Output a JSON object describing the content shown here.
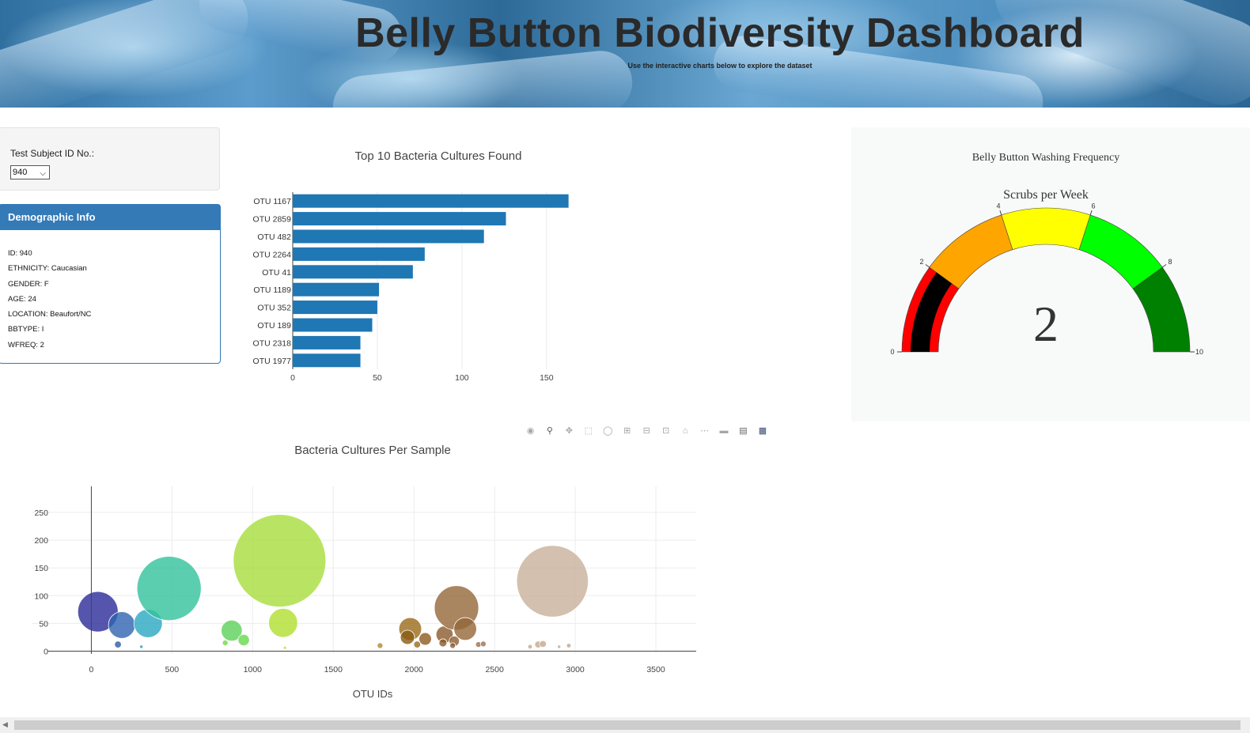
{
  "header": {
    "title": "Belly Button Biodiversity Dashboard",
    "subtitle": "Use the interactive charts below to explore the dataset"
  },
  "selector": {
    "label": "Test Subject ID No.:",
    "selected": "940"
  },
  "demographic": {
    "heading": "Demographic Info",
    "items": [
      "ID: 940",
      "ETHNICITY: Caucasian",
      "GENDER: F",
      "AGE: 24",
      "LOCATION: Beaufort/NC",
      "BBTYPE: I",
      "WFREQ: 2"
    ]
  },
  "colors": {
    "accent": "#337ab7",
    "bar": "#1f77b4"
  },
  "toolbar": {
    "icons": [
      "camera-icon",
      "zoom-icon",
      "pan-icon",
      "box-select-icon",
      "lasso-icon",
      "zoom-in-icon",
      "zoom-out-icon",
      "autoscale-icon",
      "reset-axes-icon",
      "spike-lines-icon",
      "hover-closest-icon",
      "hover-compare-icon",
      "plotly-logo-icon"
    ]
  },
  "chart_data": [
    {
      "type": "bar",
      "orientation": "horizontal",
      "title": "Top 10 Bacteria Cultures Found",
      "categories": [
        "OTU 1167",
        "OTU 2859",
        "OTU 482",
        "OTU 2264",
        "OTU 41",
        "OTU 1189",
        "OTU 352",
        "OTU 189",
        "OTU 2318",
        "OTU 1977"
      ],
      "values": [
        163,
        126,
        113,
        78,
        71,
        51,
        50,
        47,
        40,
        40
      ],
      "xticks": [
        0,
        50,
        100,
        150
      ],
      "xlim": [
        0,
        180
      ],
      "grid": true
    },
    {
      "type": "gauge",
      "title": "Belly Button Washing Frequency",
      "subtitle": "Scrubs per Week",
      "value": 2,
      "range": [
        0,
        10
      ],
      "ticks": [
        0,
        2,
        4,
        6,
        8,
        10
      ],
      "steps": [
        {
          "range": [
            0,
            2
          ],
          "color": "#ff0000"
        },
        {
          "range": [
            2,
            4
          ],
          "color": "#ffa500"
        },
        {
          "range": [
            4,
            6
          ],
          "color": "#ffff00"
        },
        {
          "range": [
            6,
            8
          ],
          "color": "#00ff00"
        },
        {
          "range": [
            8,
            10
          ],
          "color": "#008000"
        }
      ],
      "bar_color": "#000000"
    },
    {
      "type": "scatter",
      "mode": "bubble",
      "title": "Bacteria Cultures Per Sample",
      "xlabel": "OTU IDs",
      "ylabel": "",
      "xlim": [
        -370,
        3750
      ],
      "ylim": [
        -5,
        297
      ],
      "xticks": [
        0,
        500,
        1000,
        1500,
        2000,
        2500,
        3000,
        3500
      ],
      "yticks": [
        0,
        50,
        100,
        150,
        200,
        250
      ],
      "grid": true,
      "points": [
        {
          "x": 41,
          "y": 71,
          "size": 71,
          "color": "#2c2a99"
        },
        {
          "x": 189,
          "y": 47,
          "size": 47,
          "color": "#2e64b0"
        },
        {
          "x": 352,
          "y": 50,
          "size": 50,
          "color": "#2aa8c2"
        },
        {
          "x": 482,
          "y": 113,
          "size": 113,
          "color": "#32c29c"
        },
        {
          "x": 165,
          "y": 12,
          "size": 12,
          "color": "#2e5aa8"
        },
        {
          "x": 310,
          "y": 8,
          "size": 6,
          "color": "#2a9ac0"
        },
        {
          "x": 870,
          "y": 37,
          "size": 37,
          "color": "#5cd15a"
        },
        {
          "x": 945,
          "y": 20,
          "size": 20,
          "color": "#66d84e"
        },
        {
          "x": 830,
          "y": 15,
          "size": 10,
          "color": "#70d84a"
        },
        {
          "x": 1167,
          "y": 163,
          "size": 163,
          "color": "#a8dd3c"
        },
        {
          "x": 1189,
          "y": 51,
          "size": 51,
          "color": "#b0de30"
        },
        {
          "x": 1200,
          "y": 6,
          "size": 5,
          "color": "#b8df30"
        },
        {
          "x": 1790,
          "y": 10,
          "size": 10,
          "color": "#b08a30"
        },
        {
          "x": 1977,
          "y": 40,
          "size": 40,
          "color": "#9a6a18"
        },
        {
          "x": 1960,
          "y": 25,
          "size": 25,
          "color": "#8a5a10"
        },
        {
          "x": 2020,
          "y": 12,
          "size": 12,
          "color": "#9a6a18"
        },
        {
          "x": 2070,
          "y": 22,
          "size": 22,
          "color": "#8d5a20"
        },
        {
          "x": 2190,
          "y": 30,
          "size": 30,
          "color": "#8a5a2a"
        },
        {
          "x": 2180,
          "y": 15,
          "size": 14,
          "color": "#8a5a2a"
        },
        {
          "x": 2264,
          "y": 78,
          "size": 78,
          "color": "#946638"
        },
        {
          "x": 2318,
          "y": 40,
          "size": 40,
          "color": "#946638"
        },
        {
          "x": 2250,
          "y": 18,
          "size": 18,
          "color": "#8d5e32"
        },
        {
          "x": 2240,
          "y": 10,
          "size": 10,
          "color": "#8d5e32"
        },
        {
          "x": 2400,
          "y": 12,
          "size": 10,
          "color": "#9c7050"
        },
        {
          "x": 2430,
          "y": 13,
          "size": 10,
          "color": "#9c7050"
        },
        {
          "x": 2859,
          "y": 126,
          "size": 126,
          "color": "#c8b09a"
        },
        {
          "x": 2770,
          "y": 12,
          "size": 12,
          "color": "#c4a890"
        },
        {
          "x": 2800,
          "y": 13,
          "size": 12,
          "color": "#c4a890"
        },
        {
          "x": 2720,
          "y": 8,
          "size": 8,
          "color": "#c4a890"
        },
        {
          "x": 2960,
          "y": 10,
          "size": 8,
          "color": "#c4a890"
        },
        {
          "x": 2900,
          "y": 8,
          "size": 6,
          "color": "#c4a890"
        }
      ]
    }
  ]
}
